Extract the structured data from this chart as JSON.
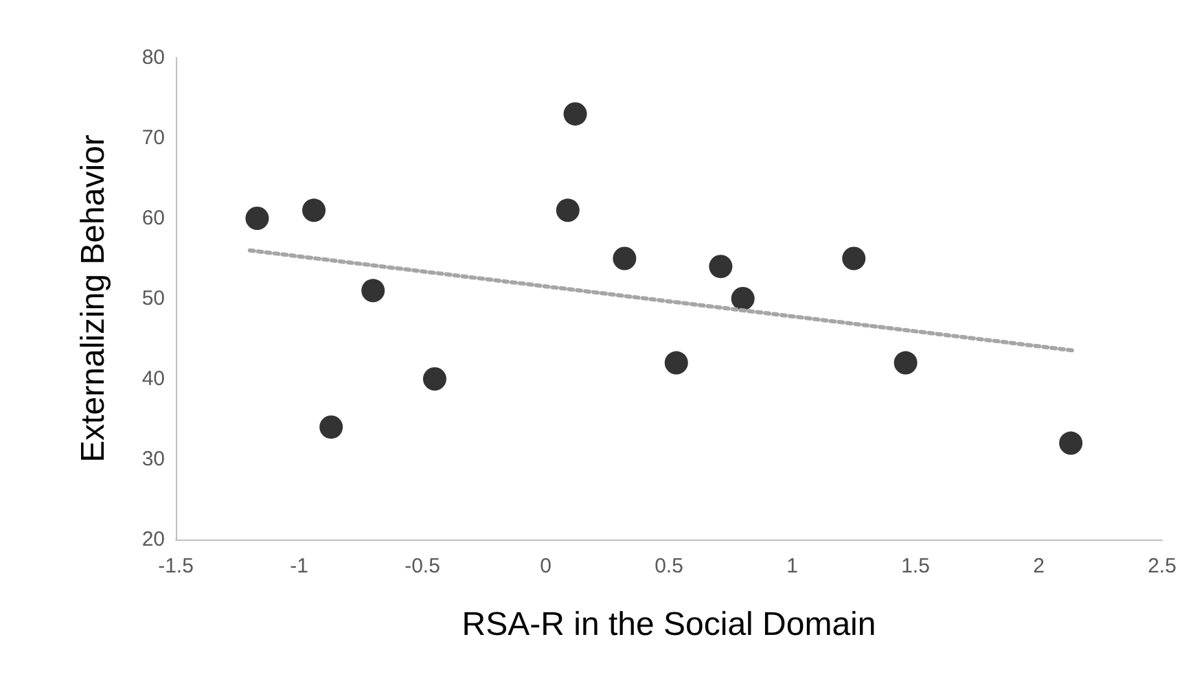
{
  "chart_data": {
    "type": "scatter",
    "xlabel": "RSA-R in the Social Domain",
    "ylabel": "Externalizing Behavior",
    "xlim": [
      -1.5,
      2.5
    ],
    "xticks": [
      -1.5,
      -1,
      -0.5,
      0,
      0.5,
      1,
      1.5,
      2,
      2.5
    ],
    "ylim": [
      20,
      80
    ],
    "yticks": [
      20,
      30,
      40,
      50,
      60,
      70,
      80
    ],
    "grid": false,
    "marker": "circle",
    "series": [
      {
        "color": "#000000",
        "x": [
          -1.17,
          -0.94,
          -0.87,
          -0.7,
          -0.45,
          0.09,
          0.12,
          0.32,
          0.53,
          0.71,
          0.8,
          1.25,
          1.46,
          2.13
        ],
        "values": [
          60,
          61,
          34,
          51,
          40,
          61,
          73,
          55,
          42,
          54,
          50,
          55,
          42,
          32
        ]
      },
      {
        "type": "line",
        "color": "#a6a6a6",
        "line_style": "dotted",
        "marker": "none",
        "x": [
          -1.2,
          2.15
        ],
        "values": [
          56,
          43.5
        ]
      }
    ]
  }
}
